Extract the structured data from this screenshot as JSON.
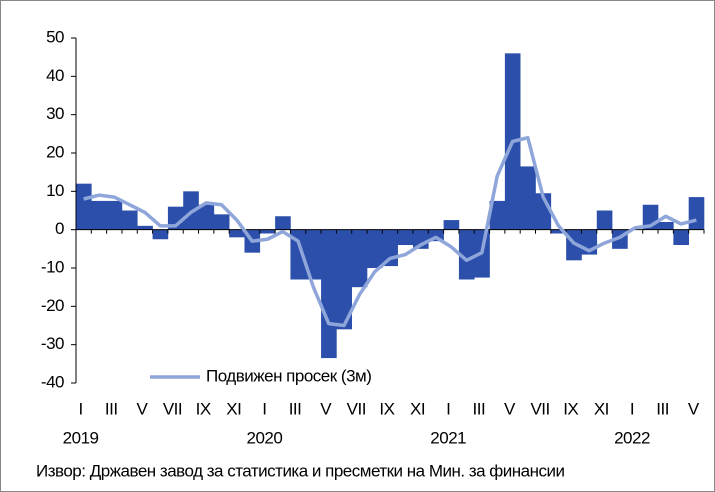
{
  "chart_data": {
    "type": "bar",
    "categories": [
      "I",
      null,
      "III",
      null,
      "V",
      null,
      "VII",
      null,
      "IX",
      null,
      "XI",
      null,
      "I",
      null,
      "III",
      null,
      "V",
      null,
      "VII",
      null,
      "IX",
      null,
      "XI",
      null,
      "I",
      null,
      "III",
      null,
      "V",
      null,
      "VII",
      null,
      "IX",
      null,
      "XI",
      null,
      "I",
      null,
      "III",
      null,
      "V"
    ],
    "years": [
      "2019",
      "2020",
      "2021",
      "2022"
    ],
    "series": [
      {
        "name": null,
        "color": "#2b4faa",
        "values": [
          12,
          7.5,
          7.5,
          5,
          1,
          -2.5,
          6,
          10,
          6.5,
          4,
          -2,
          -6,
          -1,
          3.5,
          -13,
          -13,
          -33.5,
          -26,
          -15,
          -10,
          -9.5,
          -4,
          -5,
          -3,
          2.5,
          -13,
          -12.5,
          7.5,
          46,
          16.5,
          9.5,
          -1,
          -8,
          -6.5,
          5,
          -5,
          0,
          6.5,
          2,
          -4,
          8.5
        ]
      },
      {
        "name": "Подвижен просек (3м)",
        "color": "#8fa6da",
        "type": "line",
        "values": [
          8,
          9,
          8.5,
          6.5,
          4.5,
          1,
          1,
          4.5,
          7,
          6.5,
          2.5,
          -3,
          -2.5,
          -0.5,
          -3,
          -15,
          -24.5,
          -25,
          -17,
          -11,
          -7.5,
          -6.5,
          -4,
          -2,
          -4.5,
          -8,
          -6,
          14,
          23,
          24,
          8.5,
          1,
          -3.5,
          -5.5,
          -3.5,
          -2,
          0.5,
          1,
          3.5,
          1.5,
          2.5
        ]
      }
    ],
    "ylim": [
      -40,
      50
    ],
    "yticks": [
      -40,
      -30,
      -20,
      -10,
      0,
      10,
      20,
      30,
      40,
      50
    ],
    "legend": "lower-left",
    "source": "Извор: Државен завод за статистика и пресметки на Мин. за финансии"
  }
}
